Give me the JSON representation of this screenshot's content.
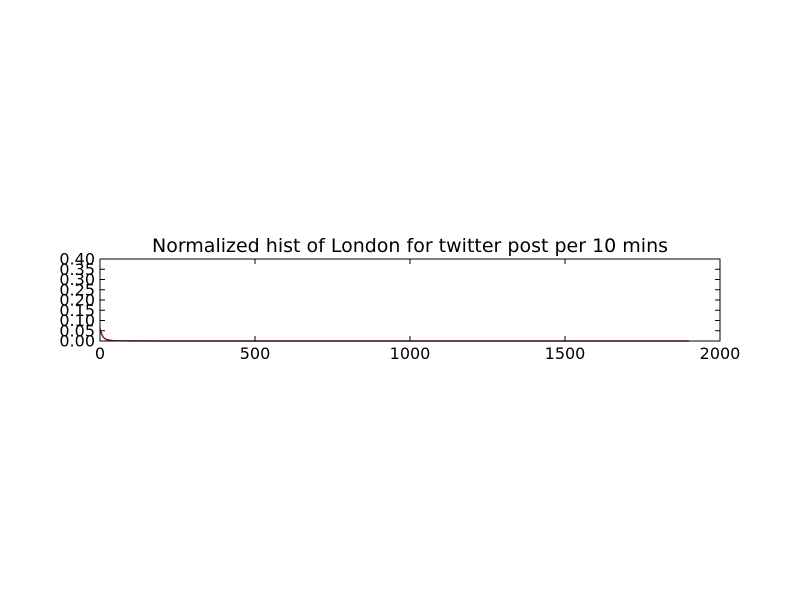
{
  "chart_data": {
    "type": "line",
    "title": "Normalized hist of London for twitter post per 10 mins",
    "xlabel": "",
    "ylabel": "",
    "xlim": [
      0,
      2000
    ],
    "ylim": [
      0,
      0.4
    ],
    "x_ticks": [
      0,
      500,
      1000,
      1500,
      2000
    ],
    "x_tick_labels": [
      "0",
      "500",
      "1000",
      "1500",
      "2000"
    ],
    "y_ticks": [
      0,
      0.05,
      0.1,
      0.15,
      0.2,
      0.25,
      0.3,
      0.35,
      0.4
    ],
    "y_tick_labels": [
      "0.00",
      "0.05",
      "0.10",
      "0.15",
      "0.20",
      "0.25",
      "0.30",
      "0.35",
      "0.40"
    ],
    "grid": false,
    "legend": "none",
    "series": [
      {
        "color": "#8b1a2b",
        "x": [
          0,
          5,
          10,
          15,
          20,
          30,
          40,
          60,
          100,
          200,
          500,
          1000,
          1500,
          1900
        ],
        "y": [
          0.06,
          0.035,
          0.02,
          0.012,
          0.008,
          0.004,
          0.002,
          0.001,
          0.0005,
          0.0002,
          0.0,
          0.0,
          0.0,
          0.0
        ]
      }
    ]
  }
}
